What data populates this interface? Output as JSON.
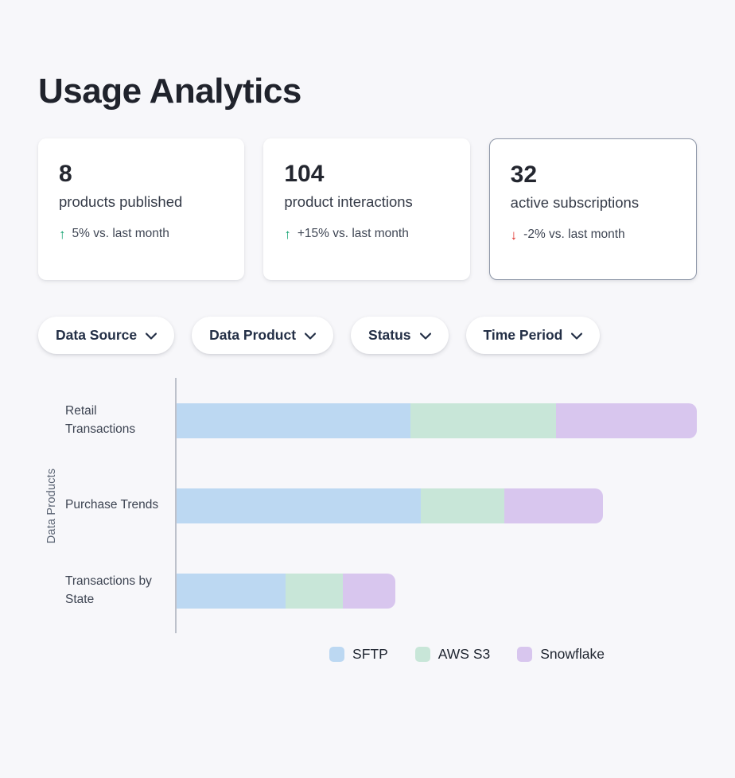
{
  "page": {
    "title": "Usage Analytics"
  },
  "cards": [
    {
      "value": "8",
      "label": "products published",
      "delta": "5% vs. last month",
      "direction": "up"
    },
    {
      "value": "104",
      "label": "product interactions",
      "delta": "+15% vs. last month",
      "direction": "up"
    },
    {
      "value": "32",
      "label": "active subscriptions",
      "delta": "-2%  vs. last month",
      "direction": "down",
      "selected": true
    }
  ],
  "colors": {
    "positive": "#0a9e6b",
    "negative": "#e0302c",
    "background": "#f7f7fa",
    "sftp_blue": "#bcd8f2",
    "aws_s3_green": "#c8e6d8",
    "snowflake_purple": "#d8c6ee"
  },
  "filters": {
    "items": [
      {
        "label": "Data Source"
      },
      {
        "label": "Data Product"
      },
      {
        "label": "Status"
      },
      {
        "label": "Time Period"
      }
    ]
  },
  "chart_data": {
    "type": "bar",
    "orientation": "horizontal",
    "stacked": true,
    "title": "",
    "xlabel": "",
    "ylabel": "Data Products",
    "xlim": [
      0,
      100
    ],
    "grid": false,
    "legend_position": "bottom",
    "categories": [
      "Retail Transactions",
      "Purchase Trends",
      "Transactions by State"
    ],
    "series": [
      {
        "name": "SFTP",
        "color": "#bcd8f2",
        "values": [
          45,
          47,
          21
        ]
      },
      {
        "name": "AWS S3",
        "color": "#c8e6d8",
        "values": [
          28,
          16,
          11
        ]
      },
      {
        "name": "Snowflake",
        "color": "#d8c6ee",
        "values": [
          27,
          19,
          10
        ]
      }
    ]
  }
}
